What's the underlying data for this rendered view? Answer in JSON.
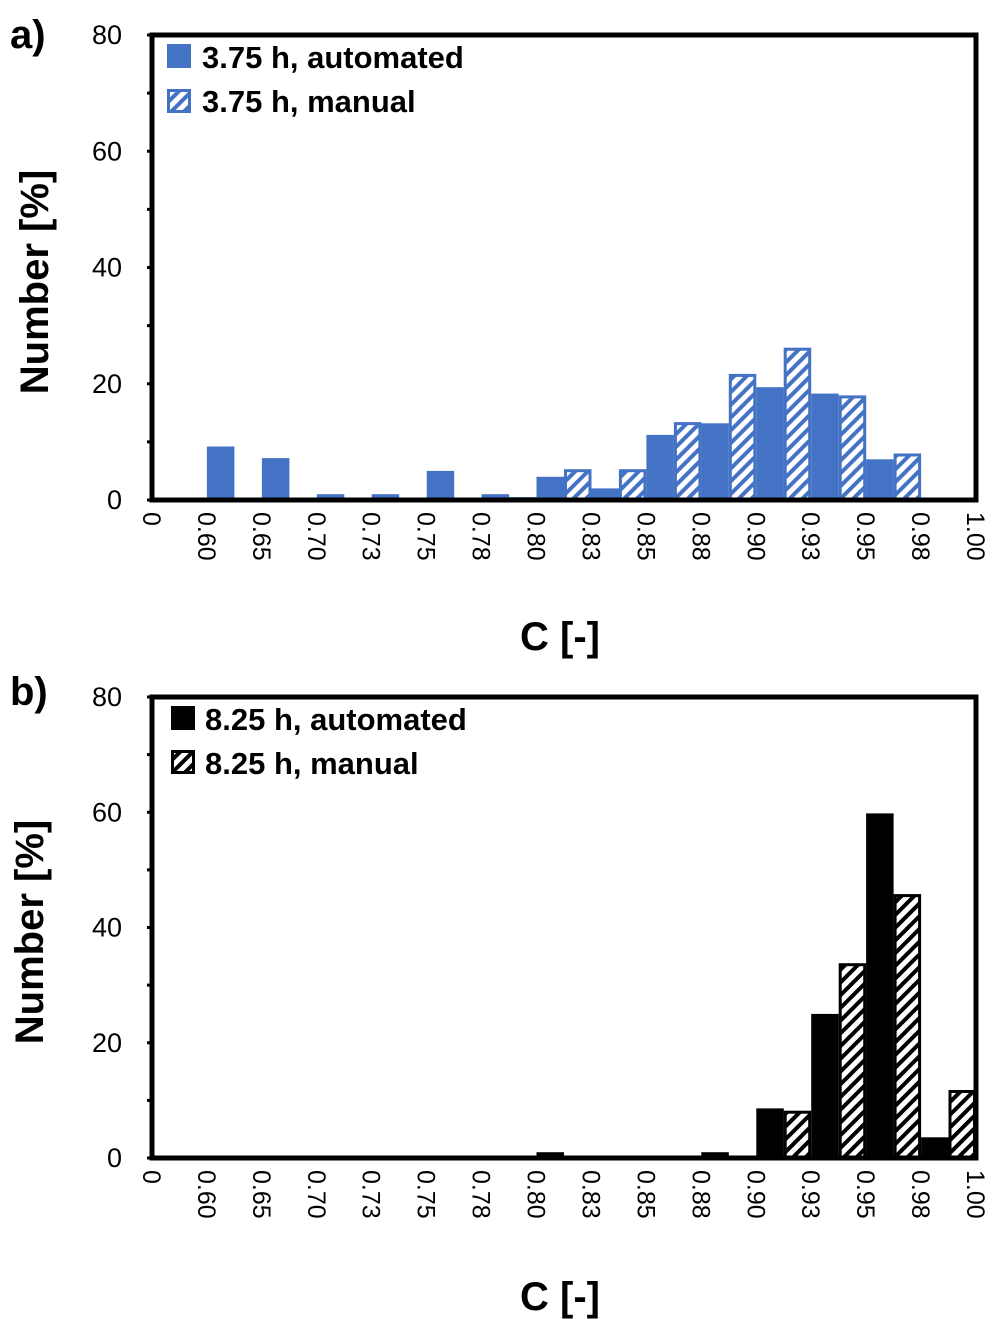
{
  "figure": {
    "width": 997,
    "height": 1319
  },
  "chart_data": [
    {
      "type": "bar",
      "panel_label": "a)",
      "title": "",
      "xlabel": "C [-]",
      "ylabel": "Number [%]",
      "ylim": [
        0,
        80
      ],
      "yticks": [
        0,
        20,
        40,
        60,
        80
      ],
      "x_tick_labels": [
        "0",
        "0.60",
        "0.65",
        "0.70",
        "0.73",
        "0.75",
        "0.78",
        "0.80",
        "0.83",
        "0.85",
        "0.88",
        "0.90",
        "0.93",
        "0.95",
        "0.98",
        "1.00"
      ],
      "categories": [
        "0.60",
        "0.65",
        "0.70",
        "0.73",
        "0.75",
        "0.78",
        "0.80",
        "0.83",
        "0.85",
        "0.88",
        "0.90",
        "0.93",
        "0.95",
        "0.98"
      ],
      "legend_position": "top-left",
      "colors": {
        "primary": "#4472c4",
        "secondary": "#ffffff"
      },
      "series": [
        {
          "name": "3.75 h, automated",
          "style": "solid",
          "color": "#4472c4",
          "values": [
            9.2,
            7.2,
            1.0,
            1.0,
            5.0,
            1.0,
            4.0,
            2.0,
            11.2,
            13.2,
            19.4,
            18.3,
            7.0,
            0
          ]
        },
        {
          "name": "3.75 h, manual",
          "style": "hatched",
          "color": "#4472c4",
          "values": [
            0,
            0,
            0,
            0,
            0,
            0.5,
            5.3,
            5.3,
            13.4,
            21.7,
            26.2,
            18.0,
            8.0,
            0
          ]
        }
      ]
    },
    {
      "type": "bar",
      "panel_label": "b)",
      "title": "",
      "xlabel": "C [-]",
      "ylabel": "Number [%]",
      "ylim": [
        0,
        80
      ],
      "yticks": [
        0,
        20,
        40,
        60,
        80
      ],
      "x_tick_labels": [
        "0",
        "0.60",
        "0.65",
        "0.70",
        "0.73",
        "0.75",
        "0.78",
        "0.80",
        "0.83",
        "0.85",
        "0.88",
        "0.90",
        "0.93",
        "0.95",
        "0.98",
        "1.00"
      ],
      "categories": [
        "0.60",
        "0.65",
        "0.70",
        "0.73",
        "0.75",
        "0.78",
        "0.80",
        "0.83",
        "0.85",
        "0.88",
        "0.90",
        "0.93",
        "0.95",
        "0.98"
      ],
      "legend_position": "top-left",
      "colors": {
        "primary": "#000000",
        "secondary": "#ffffff"
      },
      "series": [
        {
          "name": "8.25 h, automated",
          "style": "solid",
          "color": "#000000",
          "values": [
            0,
            0,
            0,
            0,
            0,
            0,
            1.0,
            0,
            0,
            1.0,
            8.6,
            25.0,
            59.8,
            3.6
          ]
        },
        {
          "name": "8.25 h, manual",
          "style": "hatched",
          "color": "#000000",
          "values": [
            0,
            0,
            0,
            0,
            0,
            0,
            0,
            0,
            0,
            0,
            8.2,
            33.8,
            45.8,
            11.8
          ]
        }
      ]
    }
  ]
}
